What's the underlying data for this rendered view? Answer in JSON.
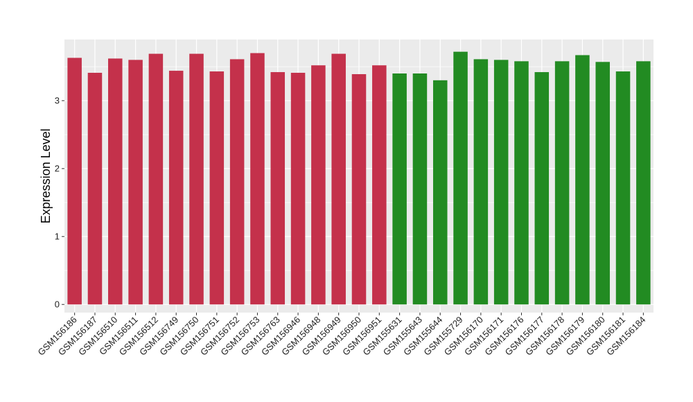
{
  "chart_data": {
    "type": "bar",
    "xlabel": "",
    "ylabel": "Expression Level",
    "ylim": [
      -0.12,
      3.9
    ],
    "yticks": [
      0,
      1,
      2,
      3
    ],
    "grid": true,
    "legend": "none",
    "colors": {
      "group1": "#C4314B",
      "group2": "#228B22",
      "panel": "#EBEBEB",
      "gridline": "#FFFFFF"
    },
    "categories": [
      "GSM156186",
      "GSM156187",
      "GSM156510",
      "GSM156511",
      "GSM156512",
      "GSM156749",
      "GSM156750",
      "GSM156751",
      "GSM156752",
      "GSM156753",
      "GSM156763",
      "GSM156946",
      "GSM156948",
      "GSM156949",
      "GSM156950",
      "GSM156951",
      "GSM155631",
      "GSM155643",
      "GSM155644",
      "GSM155729",
      "GSM156170",
      "GSM156171",
      "GSM156176",
      "GSM156177",
      "GSM156178",
      "GSM156179",
      "GSM156180",
      "GSM156181",
      "GSM156184"
    ],
    "values": [
      3.63,
      3.41,
      3.62,
      3.6,
      3.69,
      3.44,
      3.69,
      3.43,
      3.61,
      3.7,
      3.42,
      3.41,
      3.52,
      3.69,
      3.39,
      3.52,
      3.4,
      3.4,
      3.3,
      3.72,
      3.61,
      3.6,
      3.58,
      3.42,
      3.58,
      3.67,
      3.57,
      3.43,
      3.58
    ],
    "groups": [
      1,
      1,
      1,
      1,
      1,
      1,
      1,
      1,
      1,
      1,
      1,
      1,
      1,
      1,
      1,
      1,
      2,
      2,
      2,
      2,
      2,
      2,
      2,
      2,
      2,
      2,
      2,
      2,
      2
    ]
  }
}
